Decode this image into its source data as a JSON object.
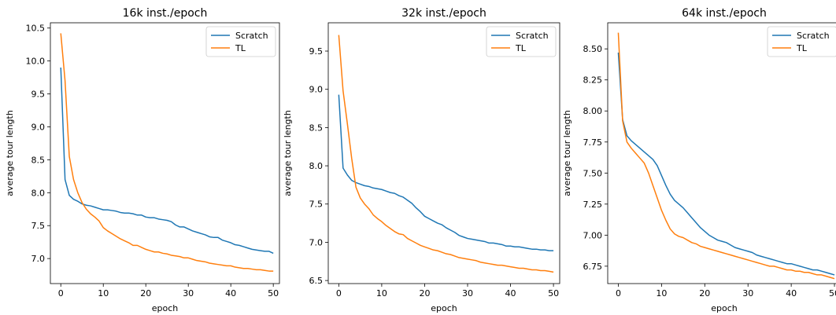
{
  "chart_data": [
    {
      "type": "line",
      "title": "16k inst./epoch",
      "xlabel": "epoch",
      "ylabel": "average tour length",
      "xlim": [
        -2.45,
        51.45
      ],
      "ylim": [
        6.62,
        10.58
      ],
      "xticks": [
        0,
        10,
        20,
        30,
        40,
        50
      ],
      "yticks": [
        7.0,
        7.5,
        8.0,
        8.5,
        9.0,
        9.5,
        10.0,
        10.5
      ],
      "ytick_labels": [
        "7.0",
        "7.5",
        "8.0",
        "8.5",
        "9.0",
        "9.5",
        "10.0",
        "10.5"
      ],
      "legend": "top-right",
      "grid": false,
      "series": [
        {
          "name": "Scratch",
          "color": "#1f77b4",
          "values": [
            9.9,
            8.2,
            7.96,
            7.9,
            7.87,
            7.83,
            7.81,
            7.8,
            7.78,
            7.76,
            7.74,
            7.74,
            7.73,
            7.72,
            7.7,
            7.69,
            7.69,
            7.68,
            7.66,
            7.66,
            7.63,
            7.62,
            7.62,
            7.6,
            7.59,
            7.58,
            7.56,
            7.51,
            7.48,
            7.48,
            7.45,
            7.42,
            7.4,
            7.38,
            7.36,
            7.33,
            7.32,
            7.32,
            7.28,
            7.26,
            7.24,
            7.21,
            7.2,
            7.18,
            7.16,
            7.14,
            7.13,
            7.12,
            7.11,
            7.11,
            7.08
          ]
        },
        {
          "name": "TL",
          "color": "#ff7f0e",
          "values": [
            10.42,
            9.7,
            8.55,
            8.2,
            8.0,
            7.85,
            7.75,
            7.68,
            7.63,
            7.57,
            7.47,
            7.42,
            7.38,
            7.34,
            7.3,
            7.27,
            7.24,
            7.2,
            7.2,
            7.17,
            7.14,
            7.12,
            7.1,
            7.1,
            7.08,
            7.07,
            7.05,
            7.04,
            7.03,
            7.01,
            7.01,
            6.99,
            6.97,
            6.96,
            6.95,
            6.93,
            6.92,
            6.91,
            6.9,
            6.89,
            6.89,
            6.87,
            6.86,
            6.85,
            6.85,
            6.84,
            6.83,
            6.83,
            6.82,
            6.81,
            6.81
          ]
        }
      ]
    },
    {
      "type": "line",
      "title": "32k inst./epoch",
      "xlabel": "epoch",
      "ylabel": "average tour length",
      "xlim": [
        -2.45,
        51.45
      ],
      "ylim": [
        6.46,
        9.87
      ],
      "xticks": [
        0,
        10,
        20,
        30,
        40,
        50
      ],
      "yticks": [
        6.5,
        7.0,
        7.5,
        8.0,
        8.5,
        9.0,
        9.5
      ],
      "ytick_labels": [
        "6.5",
        "7.0",
        "7.5",
        "8.0",
        "8.5",
        "9.0",
        "9.5"
      ],
      "legend": "top-right",
      "grid": false,
      "series": [
        {
          "name": "Scratch",
          "color": "#1f77b4",
          "values": [
            8.93,
            7.97,
            7.88,
            7.81,
            7.78,
            7.76,
            7.74,
            7.73,
            7.71,
            7.7,
            7.69,
            7.67,
            7.65,
            7.64,
            7.61,
            7.59,
            7.55,
            7.51,
            7.45,
            7.4,
            7.34,
            7.31,
            7.28,
            7.25,
            7.23,
            7.19,
            7.16,
            7.13,
            7.09,
            7.07,
            7.05,
            7.04,
            7.03,
            7.02,
            7.01,
            6.99,
            6.99,
            6.98,
            6.97,
            6.95,
            6.95,
            6.94,
            6.94,
            6.93,
            6.92,
            6.91,
            6.91,
            6.9,
            6.9,
            6.89,
            6.89
          ]
        },
        {
          "name": "TL",
          "color": "#ff7f0e",
          "values": [
            9.71,
            8.98,
            8.55,
            8.1,
            7.72,
            7.58,
            7.5,
            7.44,
            7.36,
            7.31,
            7.27,
            7.22,
            7.18,
            7.14,
            7.11,
            7.1,
            7.05,
            7.02,
            6.99,
            6.96,
            6.94,
            6.92,
            6.9,
            6.89,
            6.87,
            6.85,
            6.84,
            6.82,
            6.8,
            6.79,
            6.78,
            6.77,
            6.76,
            6.74,
            6.73,
            6.72,
            6.71,
            6.7,
            6.7,
            6.69,
            6.68,
            6.67,
            6.66,
            6.66,
            6.65,
            6.64,
            6.64,
            6.63,
            6.63,
            6.62,
            6.61
          ]
        }
      ]
    },
    {
      "type": "line",
      "title": "64k inst./epoch",
      "xlabel": "epoch",
      "ylabel": "average tour length",
      "xlim": [
        -2.45,
        51.45
      ],
      "ylim": [
        6.61,
        8.71
      ],
      "xticks": [
        0,
        10,
        20,
        30,
        40,
        50
      ],
      "yticks": [
        6.75,
        7.0,
        7.25,
        7.5,
        7.75,
        8.0,
        8.25,
        8.5
      ],
      "ytick_labels": [
        "6.75",
        "7.00",
        "7.25",
        "7.50",
        "7.75",
        "8.00",
        "8.25",
        "8.50"
      ],
      "legend": "top-right",
      "grid": false,
      "series": [
        {
          "name": "Scratch",
          "color": "#1f77b4",
          "values": [
            8.47,
            7.93,
            7.8,
            7.76,
            7.73,
            7.7,
            7.67,
            7.64,
            7.61,
            7.56,
            7.48,
            7.4,
            7.33,
            7.28,
            7.25,
            7.22,
            7.18,
            7.14,
            7.1,
            7.06,
            7.03,
            7.0,
            6.98,
            6.96,
            6.95,
            6.94,
            6.92,
            6.9,
            6.89,
            6.88,
            6.87,
            6.86,
            6.84,
            6.83,
            6.82,
            6.81,
            6.8,
            6.79,
            6.78,
            6.77,
            6.77,
            6.76,
            6.75,
            6.74,
            6.73,
            6.72,
            6.72,
            6.71,
            6.7,
            6.69,
            6.68
          ]
        },
        {
          "name": "TL",
          "color": "#ff7f0e",
          "values": [
            8.63,
            7.92,
            7.75,
            7.7,
            7.66,
            7.62,
            7.58,
            7.5,
            7.4,
            7.3,
            7.2,
            7.12,
            7.05,
            7.01,
            6.99,
            6.98,
            6.96,
            6.94,
            6.93,
            6.91,
            6.9,
            6.89,
            6.88,
            6.87,
            6.86,
            6.85,
            6.84,
            6.83,
            6.82,
            6.81,
            6.8,
            6.79,
            6.78,
            6.77,
            6.76,
            6.75,
            6.75,
            6.74,
            6.73,
            6.72,
            6.72,
            6.71,
            6.71,
            6.7,
            6.7,
            6.69,
            6.68,
            6.68,
            6.67,
            6.66,
            6.65
          ]
        }
      ]
    }
  ]
}
